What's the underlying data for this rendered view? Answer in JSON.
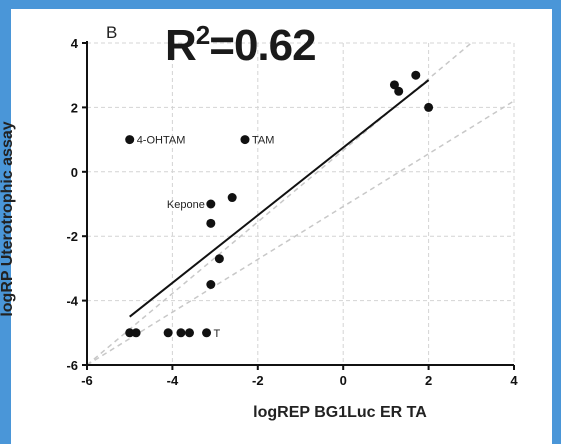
{
  "chart_data": {
    "type": "scatter",
    "panel_label": "B",
    "r2_label": "R",
    "r2_sup": "2",
    "r2_value": "=0.62",
    "xlabel": "logREP BG1Luc ER TA",
    "ylabel": "logRP Uterotrophic assay",
    "xlim": [
      -6,
      4
    ],
    "ylim": [
      -6,
      4
    ],
    "xticks": [
      -6,
      -4,
      -2,
      0,
      2,
      4
    ],
    "yticks": [
      -6,
      -4,
      -2,
      0,
      2,
      4
    ],
    "grid": true,
    "points": [
      {
        "x": -5.0,
        "y": 1.0,
        "label": "4-OHTAM"
      },
      {
        "x": -2.3,
        "y": 1.0,
        "label": "TAM"
      },
      {
        "x": -3.1,
        "y": -1.0,
        "label": "Kepone"
      },
      {
        "x": -2.6,
        "y": -0.8
      },
      {
        "x": -3.1,
        "y": -1.6
      },
      {
        "x": -2.9,
        "y": -2.7
      },
      {
        "x": -3.1,
        "y": -3.5
      },
      {
        "x": -5.0,
        "y": -5.0
      },
      {
        "x": -4.85,
        "y": -5.0
      },
      {
        "x": -4.1,
        "y": -5.0
      },
      {
        "x": -3.8,
        "y": -5.0
      },
      {
        "x": -3.6,
        "y": -5.0
      },
      {
        "x": -3.2,
        "y": -5.0,
        "label": "T"
      },
      {
        "x": 1.2,
        "y": 2.7
      },
      {
        "x": 1.3,
        "y": 2.5
      },
      {
        "x": 1.7,
        "y": 3.0
      },
      {
        "x": 2.0,
        "y": 2.0
      }
    ],
    "regression": {
      "x": [
        -5.0,
        2.0
      ],
      "y": [
        -4.5,
        2.85
      ]
    },
    "identity_lines": [
      {
        "x": [
          -6,
          3.0
        ],
        "y": [
          -6,
          4.0
        ]
      },
      {
        "x": [
          -6,
          4.0
        ],
        "y": [
          -6,
          2.2
        ]
      }
    ],
    "colors": {
      "points": "#111111",
      "regression": "#111111",
      "identity": "#c8c8c8",
      "grid": "#d4d4d4",
      "frame": "#4a96d8"
    }
  }
}
